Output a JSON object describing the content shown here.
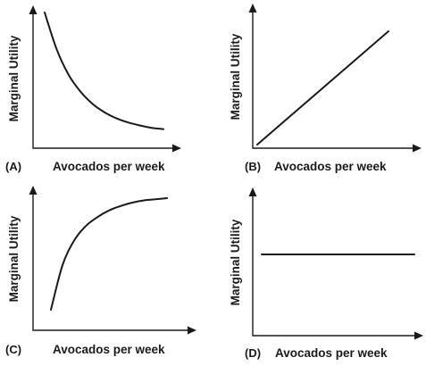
{
  "chart_data": [
    {
      "type": "line",
      "panel_label": "(A)",
      "xlabel": "Avocados per week",
      "ylabel": "Marginal Utility",
      "shape": "decreasing at a decreasing rate (convex)",
      "series": [
        {
          "x": [
            0.0,
            0.1,
            0.2,
            0.3,
            0.4,
            0.5,
            0.6,
            0.7,
            0.8,
            0.9,
            1.0
          ],
          "y": [
            1.0,
            0.7,
            0.49,
            0.35,
            0.25,
            0.18,
            0.13,
            0.095,
            0.07,
            0.05,
            0.04
          ]
        }
      ]
    },
    {
      "type": "line",
      "panel_label": "(B)",
      "xlabel": "Avocados per week",
      "ylabel": "Marginal Utility",
      "shape": "increasing linearly",
      "series": [
        {
          "x": [
            0.0,
            1.0
          ],
          "y": [
            0.0,
            1.0
          ]
        }
      ]
    },
    {
      "type": "line",
      "panel_label": "(C)",
      "xlabel": "Avocados per week",
      "ylabel": "Marginal Utility",
      "shape": "increasing at a decreasing rate (concave)",
      "series": [
        {
          "x": [
            0.0,
            0.1,
            0.2,
            0.3,
            0.4,
            0.5,
            0.6,
            0.7,
            0.8,
            0.9,
            1.0
          ],
          "y": [
            0.0,
            0.4,
            0.62,
            0.75,
            0.83,
            0.89,
            0.93,
            0.96,
            0.98,
            0.99,
            1.0
          ]
        }
      ]
    },
    {
      "type": "line",
      "panel_label": "(D)",
      "xlabel": "Avocados per week",
      "ylabel": "Marginal Utility",
      "shape": "constant (horizontal)",
      "series": [
        {
          "x": [
            0.0,
            1.0
          ],
          "y": [
            0.5,
            0.5
          ]
        }
      ]
    }
  ]
}
